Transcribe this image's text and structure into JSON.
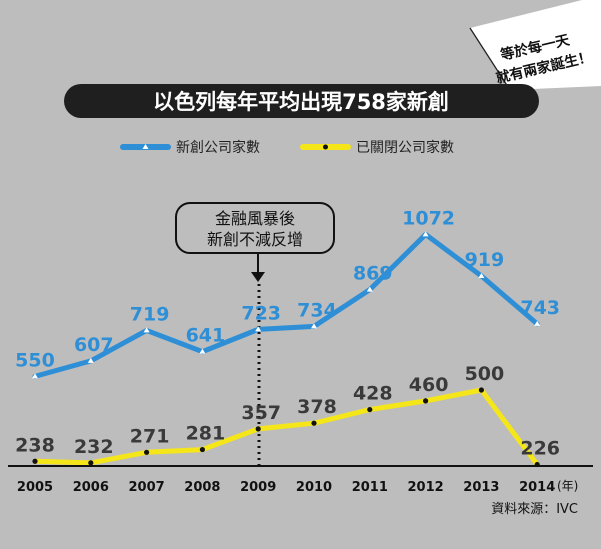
{
  "chart_data": {
    "type": "line",
    "title": "以色列每年平均出現758家新創",
    "corner_note": [
      "等於每一天",
      "就有兩家誕生！"
    ],
    "callout": [
      "金融風暴後",
      "新創不減反增"
    ],
    "x": [
      "2005",
      "2006",
      "2007",
      "2008",
      "2009",
      "2010",
      "2011",
      "2012",
      "2013",
      "2014"
    ],
    "x_unit": "(年)",
    "source": "資料來源：IVC",
    "legend_position": "top",
    "ylim": [
      0,
      1200
    ],
    "grid": false,
    "series": [
      {
        "name": "新創公司家數",
        "values": [
          550,
          607,
          719,
          641,
          723,
          734,
          869,
          1072,
          919,
          743
        ],
        "labels": [
          "550",
          "607",
          "719",
          "641",
          "723",
          "734",
          "869",
          "1072",
          "919",
          "743"
        ],
        "color": "#2f8fd6",
        "label_color": "#2f8fd6",
        "marker": "triangle"
      },
      {
        "name": "已關閉公司家數",
        "values": [
          238,
          232,
          271,
          281,
          357,
          378,
          428,
          460,
          500,
          226
        ],
        "labels": [
          "238",
          "232",
          "271",
          "281",
          "357",
          "378",
          "428",
          "460",
          "500",
          "226"
        ],
        "color": "#f5e61a",
        "label_color": "#3a3a3a",
        "marker": "circle"
      }
    ],
    "event_marker_x": "2009"
  }
}
